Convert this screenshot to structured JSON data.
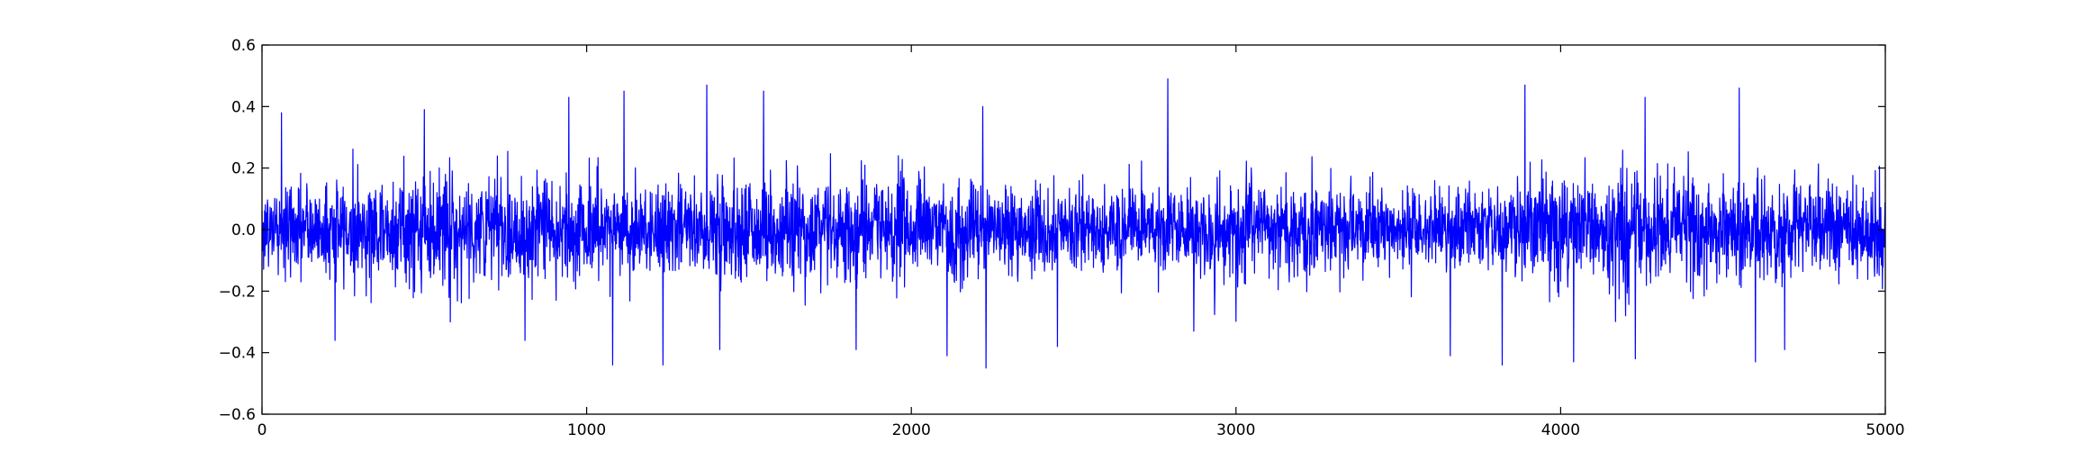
{
  "chart_data": {
    "type": "line",
    "title": "",
    "xlabel": "",
    "ylabel": "",
    "xlim": [
      0,
      5000
    ],
    "ylim": [
      -0.6,
      0.6
    ],
    "grid": false,
    "legend": "none",
    "x_ticks": [
      "0",
      "1000",
      "2000",
      "3000",
      "4000",
      "5000"
    ],
    "y_ticks": [
      "0.6",
      "0.4",
      "0.2",
      "0.0",
      "−0.2",
      "−0.4",
      "−0.6"
    ],
    "series": [
      {
        "color": "#0000ff",
        "num_points": 5000,
        "distribution": {
          "mean": 0.0,
          "std": 0.1
        },
        "peaks": [
          {
            "x": 60,
            "y": 0.38
          },
          {
            "x": 225,
            "y": -0.36
          },
          {
            "x": 500,
            "y": 0.39
          },
          {
            "x": 580,
            "y": -0.3
          },
          {
            "x": 810,
            "y": -0.36
          },
          {
            "x": 945,
            "y": 0.43
          },
          {
            "x": 1080,
            "y": -0.44
          },
          {
            "x": 1115,
            "y": 0.45
          },
          {
            "x": 1235,
            "y": -0.44
          },
          {
            "x": 1370,
            "y": 0.47
          },
          {
            "x": 1410,
            "y": -0.39
          },
          {
            "x": 1545,
            "y": 0.45
          },
          {
            "x": 1830,
            "y": -0.39
          },
          {
            "x": 2110,
            "y": -0.41
          },
          {
            "x": 2220,
            "y": 0.4
          },
          {
            "x": 2230,
            "y": -0.45
          },
          {
            "x": 2450,
            "y": -0.38
          },
          {
            "x": 2790,
            "y": 0.49
          },
          {
            "x": 2870,
            "y": -0.33
          },
          {
            "x": 3660,
            "y": -0.41
          },
          {
            "x": 3820,
            "y": -0.44
          },
          {
            "x": 3890,
            "y": 0.47
          },
          {
            "x": 4040,
            "y": -0.43
          },
          {
            "x": 4230,
            "y": -0.42
          },
          {
            "x": 4260,
            "y": 0.43
          },
          {
            "x": 4550,
            "y": 0.46
          },
          {
            "x": 4600,
            "y": -0.43
          },
          {
            "x": 4690,
            "y": -0.39
          }
        ]
      }
    ]
  }
}
